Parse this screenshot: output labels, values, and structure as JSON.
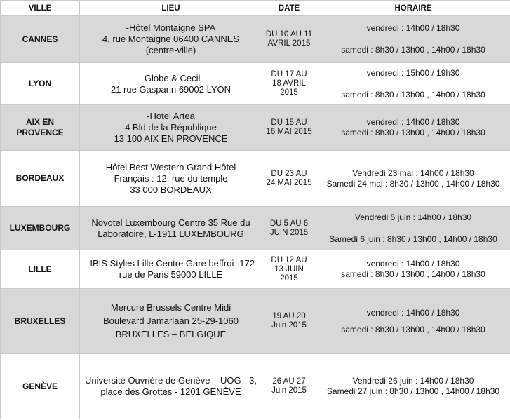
{
  "table": {
    "headers": [
      "VILLE",
      "LIEU",
      "DATE",
      "HORAIRE"
    ],
    "rows": [
      {
        "ville": "CANNES",
        "lieu": [
          "-Hôtel Montaigne SPA",
          "4, rue Montaigne 06400 CANNES",
          "(centre-ville)"
        ],
        "date": [
          "DU 10 AU 11",
          "AVRIL 2015"
        ],
        "horaire": [
          "vendredi : 14h00 / 18h30",
          "samedi : 8h30 / 13h00 , 14h00 / 18h30"
        ]
      },
      {
        "ville": "LYON",
        "lieu": [
          "-Globe & Cecil",
          "21 rue Gasparin 69002 LYON"
        ],
        "date": [
          "DU 17 AU",
          "18 AVRIL",
          "2015"
        ],
        "horaire": [
          "vendredi : 15h00 / 19h30",
          "samedi : 8h30 / 13h00 , 14h00 / 18h30"
        ]
      },
      {
        "ville": "AIX EN PROVENCE",
        "lieu": [
          "-Hotel Artea",
          "4 Bld de la République",
          "13 100 AIX EN PROVENCE"
        ],
        "date": [
          "DU 15 AU",
          "16 MAI 2015"
        ],
        "horaire": [
          "vendredi : 14h00 / 18h30",
          "samedi : 8h30 / 13h00 , 14h00 / 18h30"
        ]
      },
      {
        "ville": "BORDEAUX",
        "lieu": [
          "Hôtel Best Western Grand Hôtel",
          "Français : 12, rue du temple",
          "33 000 BORDEAUX"
        ],
        "date": [
          "DU 23 AU",
          "24 MAI 2015"
        ],
        "horaire": [
          "Vendredi 23 mai : 14h00 / 18h30",
          "Samedi 24 mai : 8h30 / 13h00 , 14h00 / 18h30"
        ]
      },
      {
        "ville": "LUXEMBOURG",
        "lieu": [
          "Novotel Luxembourg Centre 35 Rue du",
          "Laboratoire,  L-1911 LUXEMBOURG"
        ],
        "date": [
          "DU 5 AU 6",
          "JUIN 2015"
        ],
        "horaire": [
          "Vendredi 5 juin : 14h00 / 18h30",
          "Samedi 6 juin : 8h30 / 13h00 , 14h00 / 18h30"
        ]
      },
      {
        "ville": "LILLE",
        "lieu": [
          "-IBIS Styles Lille Centre Gare beffroi -172",
          "rue de Paris 59000 LILLE"
        ],
        "date": [
          "DU 12 AU",
          "13 JUIN",
          "2015"
        ],
        "horaire": [
          "vendredi : 14h00 / 18h30",
          "samedi : 8h30 / 13h00 , 14h00 / 18h30"
        ]
      },
      {
        "ville": "BRUXELLES",
        "lieu": [
          "Mercure Brussels Centre Midi",
          "Boulevard Jamarlaan 25-29-1060",
          "BRUXELLES – BELGIQUE"
        ],
        "date": [
          "19 AU 20",
          "Juin 2015"
        ],
        "horaire": [
          "vendredi : 14h00 / 18h30",
          "samedi : 8h30 / 13h00 , 14h00 / 18h30"
        ]
      },
      {
        "ville": "GENÈVE",
        "lieu": [
          "Université Ouvrière de Genève – UOG - 3,",
          "place des Grottes - 1201 GENÈVE"
        ],
        "date": [
          "26 AU 27",
          "Juin 2015"
        ],
        "horaire": [
          "Vendredi 26 juin : 14h00 / 18h30",
          "Samedi 27 juin : 8h30 / 13h00 , 14h00 / 18h30"
        ]
      }
    ]
  }
}
